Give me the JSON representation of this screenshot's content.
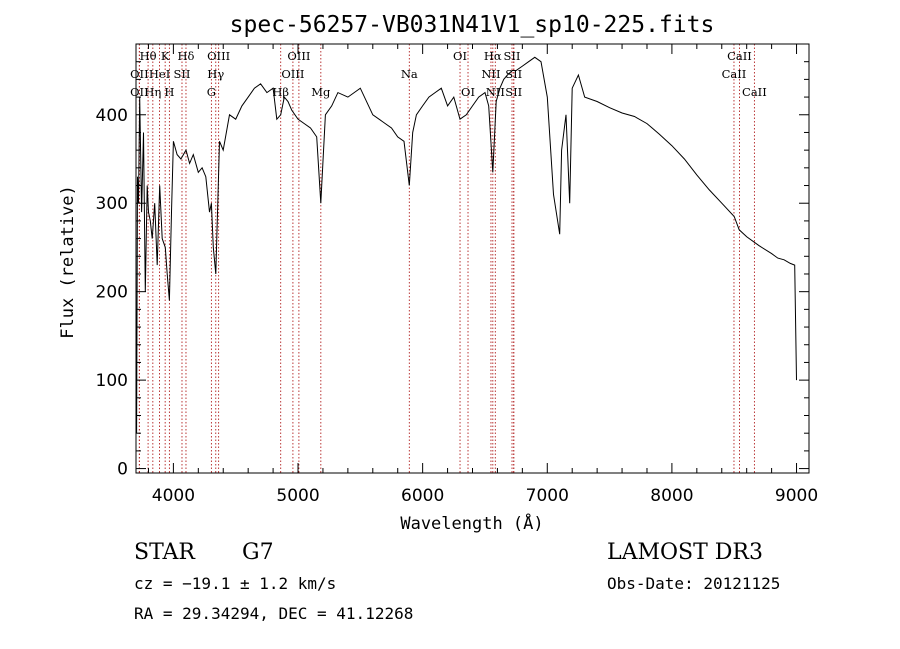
{
  "chart_data": {
    "type": "line",
    "title": "spec-56257-VB031N41V1_sp10-225.fits",
    "xlabel": "Wavelength (Å)",
    "ylabel": "Flux (relative)",
    "xlim": [
      3700,
      9100
    ],
    "ylim": [
      -5,
      480
    ],
    "xticks": [
      4000,
      5000,
      6000,
      7000,
      8000,
      9000
    ],
    "yticks": [
      0,
      100,
      200,
      300,
      400
    ],
    "series": [
      {
        "name": "flux",
        "x": [
          3700,
          3705,
          3712,
          3720,
          3730,
          3745,
          3760,
          3775,
          3790,
          3800,
          3815,
          3830,
          3850,
          3870,
          3890,
          3910,
          3935,
          3950,
          3968,
          3985,
          4000,
          4030,
          4060,
          4101,
          4130,
          4160,
          4200,
          4230,
          4260,
          4290,
          4305,
          4320,
          4340,
          4370,
          4400,
          4450,
          4500,
          4550,
          4600,
          4650,
          4700,
          4750,
          4800,
          4830,
          4861,
          4890,
          4920,
          4950,
          5000,
          5050,
          5100,
          5150,
          5183,
          5220,
          5270,
          5320,
          5400,
          5500,
          5600,
          5700,
          5750,
          5800,
          5850,
          5893,
          5920,
          5950,
          6000,
          6050,
          6100,
          6150,
          6200,
          6250,
          6300,
          6350,
          6400,
          6450,
          6500,
          6530,
          6563,
          6590,
          6620,
          6650,
          6680,
          6720,
          6750,
          6800,
          6850,
          6900,
          6950,
          7000,
          7050,
          7100,
          7115,
          7150,
          7180,
          7200,
          7250,
          7300,
          7400,
          7500,
          7600,
          7700,
          7800,
          7900,
          8000,
          8100,
          8200,
          8300,
          8400,
          8500,
          8540,
          8600,
          8700,
          8800,
          8850,
          8900,
          8950,
          8985,
          9000
        ],
        "values": [
          160,
          40,
          330,
          300,
          420,
          290,
          380,
          200,
          320,
          290,
          280,
          260,
          300,
          230,
          320,
          260,
          250,
          220,
          190,
          290,
          370,
          355,
          350,
          360,
          345,
          355,
          335,
          340,
          330,
          290,
          300,
          250,
          220,
          370,
          360,
          400,
          395,
          410,
          420,
          430,
          435,
          425,
          430,
          395,
          400,
          420,
          415,
          405,
          395,
          390,
          385,
          375,
          300,
          400,
          410,
          425,
          420,
          430,
          400,
          390,
          385,
          375,
          370,
          320,
          380,
          400,
          410,
          420,
          425,
          430,
          410,
          420,
          395,
          400,
          410,
          420,
          425,
          410,
          335,
          415,
          430,
          440,
          445,
          450,
          450,
          455,
          460,
          465,
          460,
          420,
          310,
          265,
          360,
          400,
          300,
          430,
          445,
          420,
          415,
          408,
          402,
          398,
          390,
          378,
          365,
          350,
          332,
          315,
          300,
          285,
          270,
          262,
          252,
          243,
          238,
          236,
          232,
          230,
          100
        ]
      }
    ],
    "spectral_lines": [
      {
        "label": "Hθ",
        "wl": 3797,
        "row": 0
      },
      {
        "label": "OII",
        "wl": 3727,
        "row": 1
      },
      {
        "label": "OII",
        "wl": 3727,
        "row": 2
      },
      {
        "label": "K",
        "wl": 3934,
        "row": 0
      },
      {
        "label": "HeI",
        "wl": 3889,
        "row": 1
      },
      {
        "label": "Hη",
        "wl": 3835,
        "row": 2
      },
      {
        "label": "Hδ",
        "wl": 4101,
        "row": 0
      },
      {
        "label": "SII",
        "wl": 4069,
        "row": 1
      },
      {
        "label": "H",
        "wl": 3968,
        "row": 2
      },
      {
        "label": "OIII",
        "wl": 4363,
        "row": 0
      },
      {
        "label": "Hγ",
        "wl": 4340,
        "row": 1
      },
      {
        "label": "G",
        "wl": 4305,
        "row": 2
      },
      {
        "label": "OIII",
        "wl": 5007,
        "row": 0
      },
      {
        "label": "OIII",
        "wl": 4959,
        "row": 1
      },
      {
        "label": "Hβ",
        "wl": 4861,
        "row": 2
      },
      {
        "label": "Mg",
        "wl": 5183,
        "row": 2
      },
      {
        "label": "Na",
        "wl": 5893,
        "row": 1
      },
      {
        "label": "OI",
        "wl": 6300,
        "row": 0
      },
      {
        "label": "OI",
        "wl": 6364,
        "row": 2
      },
      {
        "label": "Hα",
        "wl": 6563,
        "row": 0
      },
      {
        "label": "NII",
        "wl": 6548,
        "row": 1
      },
      {
        "label": "NII",
        "wl": 6583,
        "row": 2
      },
      {
        "label": "SII",
        "wl": 6717,
        "row": 0
      },
      {
        "label": "SII",
        "wl": 6731,
        "row": 1
      },
      {
        "label": "SII",
        "wl": 6731,
        "row": 2
      },
      {
        "label": "CaII",
        "wl": 8542,
        "row": 0
      },
      {
        "label": "CaII",
        "wl": 8498,
        "row": 1
      },
      {
        "label": "CaII",
        "wl": 8662,
        "row": 2
      }
    ]
  },
  "info": {
    "class": "STAR",
    "subclass": "G7",
    "survey": "LAMOST DR3",
    "cz": "cz = −19.1 ± 1.2 km/s",
    "obs_date": "Obs-Date: 20121125",
    "radec": "RA =  29.34294, DEC =  41.12268"
  },
  "colors": {
    "line_marker": "#b22222",
    "spectrum": "#000000"
  }
}
